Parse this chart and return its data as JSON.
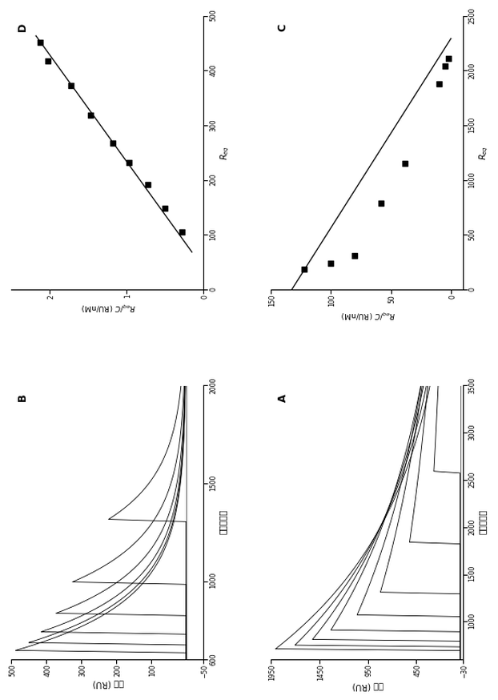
{
  "panel_A": {
    "label": "A",
    "time_label": "時間（秒）",
    "response_label": "応答 (RU)",
    "xlim": [
      600,
      3500
    ],
    "ylim": [
      -30,
      1950
    ],
    "xticks": [
      1000,
      1500,
      2000,
      2500,
      3000,
      3500
    ],
    "yticks": [
      -30,
      450,
      950,
      1450,
      1950
    ],
    "n_curves": 8,
    "peaks": [
      720,
      760,
      820,
      920,
      1080,
      1320,
      1850,
      2600
    ],
    "peak_heights": [
      1900,
      1700,
      1520,
      1330,
      1060,
      820,
      520,
      270
    ],
    "decay_rates": [
      0.00065,
      0.00058,
      0.00052,
      0.00046,
      0.0004,
      0.00034,
      0.00027,
      0.0002
    ],
    "rise_widths": [
      18,
      18,
      18,
      18,
      18,
      18,
      18,
      18
    ]
  },
  "panel_B": {
    "label": "B",
    "time_label": "時間（秒）",
    "response_label": "応答 (RU)",
    "xlim": [
      600,
      2000
    ],
    "ylim": [
      -50,
      500
    ],
    "xticks": [
      600,
      1000,
      1500,
      2000
    ],
    "yticks": [
      -50,
      100,
      200,
      300,
      400,
      500
    ],
    "n_curves": 6,
    "peaks": [
      650,
      690,
      745,
      840,
      1000,
      1320
    ],
    "peak_heights": [
      488,
      450,
      415,
      372,
      325,
      222
    ],
    "decay_rates": [
      0.004,
      0.004,
      0.004,
      0.004,
      0.004,
      0.004
    ],
    "rise_widths": [
      12,
      12,
      12,
      12,
      12,
      12
    ]
  },
  "panel_C": {
    "label": "C",
    "xlabel": "R_eq",
    "ylabel": "R_eq/C(RU/nM)",
    "xlim": [
      0,
      2500
    ],
    "ylim": [
      -10,
      150
    ],
    "xticks": [
      0,
      500,
      1000,
      1500,
      2000,
      2500
    ],
    "yticks": [
      0,
      50,
      100,
      150
    ],
    "scatter_x": [
      185,
      240,
      310,
      790,
      1150,
      1880,
      2040,
      2110
    ],
    "scatter_y": [
      122,
      100,
      80,
      58,
      38,
      10,
      5,
      2
    ],
    "line_x": [
      0,
      2300
    ],
    "line_y": [
      133,
      0
    ]
  },
  "panel_D": {
    "label": "D",
    "xlabel": "R_eq",
    "ylabel": "R_eq/C(RU/nM)",
    "xlim": [
      0,
      500
    ],
    "ylim": [
      0,
      2.5
    ],
    "xticks": [
      0,
      100,
      200,
      300,
      400,
      500
    ],
    "yticks": [
      0,
      1,
      2
    ],
    "scatter_x": [
      105,
      148,
      192,
      232,
      268,
      318,
      372,
      418,
      452
    ],
    "scatter_y": [
      0.28,
      0.5,
      0.72,
      0.97,
      1.18,
      1.47,
      1.73,
      2.02,
      2.13
    ],
    "line_x": [
      70,
      465
    ],
    "line_y": [
      0.15,
      2.18
    ],
    "hline_y": 0.0
  }
}
